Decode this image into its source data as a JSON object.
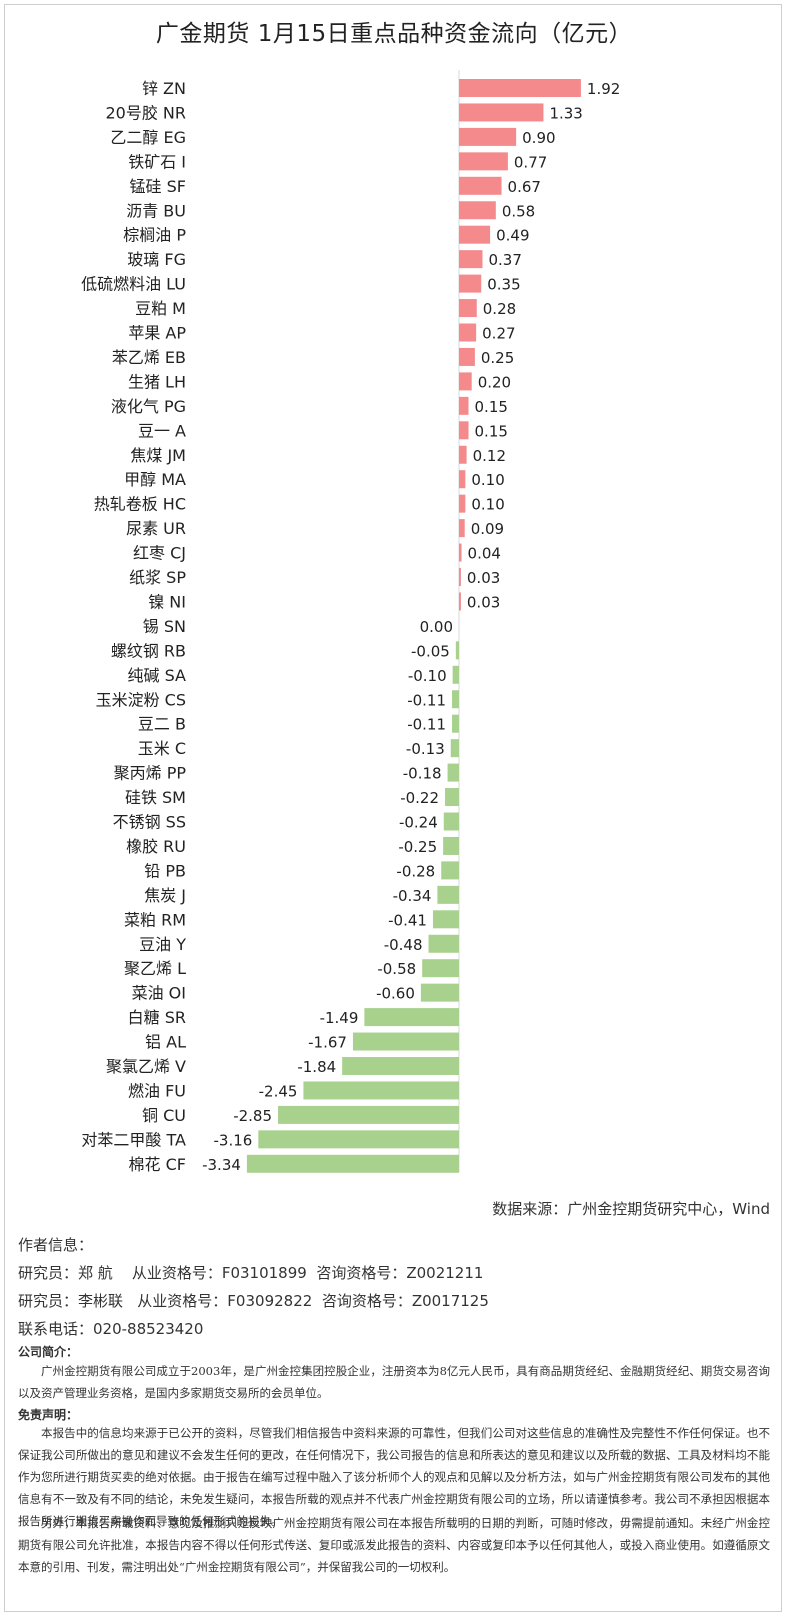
{
  "title": "广金期货 1月15日重点品种资金流向（亿元）",
  "chart_data": {
    "type": "bar",
    "orientation": "horizontal",
    "categories": [
      "锌 ZN",
      "20号胶 NR",
      "乙二醇 EG",
      "铁矿石 I",
      "锰硅 SF",
      "沥青 BU",
      "棕榈油 P",
      "玻璃 FG",
      "低硫燃料油 LU",
      "豆粕 M",
      "苹果 AP",
      "苯乙烯 EB",
      "生猪 LH",
      "液化气 PG",
      "豆一 A",
      "焦煤 JM",
      "甲醇 MA",
      "热轧卷板 HC",
      "尿素 UR",
      "红枣 CJ",
      "纸浆 SP",
      "镍 NI",
      "锡 SN",
      "螺纹钢 RB",
      "纯碱 SA",
      "玉米淀粉 CS",
      "豆二 B",
      "玉米 C",
      "聚丙烯 PP",
      "硅铁 SM",
      "不锈钢 SS",
      "橡胶 RU",
      "铅 PB",
      "焦炭 J",
      "菜粕 RM",
      "豆油 Y",
      "聚乙烯 L",
      "菜油 OI",
      "白糖 SR",
      "铝 AL",
      "聚氯乙烯 V",
      "燃油 FU",
      "铜 CU",
      "对苯二甲酸 TA",
      "棉花 CF"
    ],
    "values": [
      1.92,
      1.33,
      0.9,
      0.77,
      0.67,
      0.58,
      0.49,
      0.37,
      0.35,
      0.28,
      0.27,
      0.25,
      0.2,
      0.15,
      0.15,
      0.12,
      0.1,
      0.1,
      0.09,
      0.04,
      0.03,
      0.03,
      0.0,
      -0.05,
      -0.1,
      -0.11,
      -0.11,
      -0.13,
      -0.18,
      -0.22,
      -0.24,
      -0.25,
      -0.28,
      -0.34,
      -0.41,
      -0.48,
      -0.58,
      -0.6,
      -1.49,
      -1.67,
      -1.84,
      -2.45,
      -2.85,
      -3.16,
      -3.34
    ],
    "value_labels": [
      "1.92",
      "1.33",
      "0.90",
      "0.77",
      "0.67",
      "0.58",
      "0.49",
      "0.37",
      "0.35",
      "0.28",
      "0.27",
      "0.25",
      "0.20",
      "0.15",
      "0.15",
      "0.12",
      "0.10",
      "0.10",
      "0.09",
      "0.04",
      "0.03",
      "0.03",
      "0.00",
      "-0.05",
      "-0.10",
      "-0.11",
      "-0.11",
      "-0.13",
      "-0.18",
      "-0.22",
      "-0.24",
      "-0.25",
      "-0.28",
      "-0.34",
      "-0.41",
      "-0.48",
      "-0.58",
      "-0.60",
      "-1.49",
      "-1.67",
      "-1.84",
      "-2.45",
      "-2.85",
      "-3.16",
      "-3.34"
    ],
    "xlim": [
      -3.34,
      1.92
    ],
    "grid": false,
    "legend": "none",
    "colors": {
      "positive": "#f58a8d",
      "negative": "#a9d18e"
    }
  },
  "source": "数据来源：广州金控期货研究中心，Wind",
  "author": {
    "heading": "作者信息：",
    "researchers": [
      "研究员：郑 航    从业资格号：F03101899  咨询资格号：Z0021211",
      "研究员：李彬联   从业资格号：F03092822  咨询资格号：Z0017125"
    ],
    "phone": "联系电话：020-88523420"
  },
  "company": {
    "heading": "公司简介：",
    "text": "广州金控期货有限公司成立于2003年，是广州金控集团控股企业，注册资本为8亿元人民币，具有商品期货经纪、金融期货经纪、期货交易咨询以及资产管理业务资格，是国内多家期货交易所的会员单位。"
  },
  "disclaimer": {
    "heading": "免责声明：",
    "p1": "本报告中的信息均来源于已公开的资料，尽管我们相信报告中资料来源的可靠性，但我们公司对这些信息的准确性及完整性不作任何保证。也不保证我公司所做出的意见和建议不会发生任何的更改，在任何情况下，我公司报告的信息和所表达的意见和建议以及所载的数据、工具及材料均不能作为您所进行期货买卖的绝对依据。由于报告在编写过程中融入了该分析师个人的观点和见解以及分析方法，如与广州金控期货有限公司发布的其他信息有不一致及有不同的结论，未免发生疑问，本报告所载的观点并不代表广州金控期货有限公司的立场，所以请谨慎参考。我公司不承担因根据本报告所进行期货买卖操作而导致的任何形式的损失。",
    "p2": "另外，本报告所载资料、意见及推测只是反映广州金控期货有限公司在本报告所载明的日期的判断，可随时修改，毋需提前通知。未经广州金控期货有限公司允许批准，本报告内容不得以任何形式传送、复印或派发此报告的资料、内容或复印本予以任何其他人，或投入商业使用。如遵循原文本意的引用、刊发，需注明出处“广州金控期货有限公司”，并保留我公司的一切权利。"
  }
}
